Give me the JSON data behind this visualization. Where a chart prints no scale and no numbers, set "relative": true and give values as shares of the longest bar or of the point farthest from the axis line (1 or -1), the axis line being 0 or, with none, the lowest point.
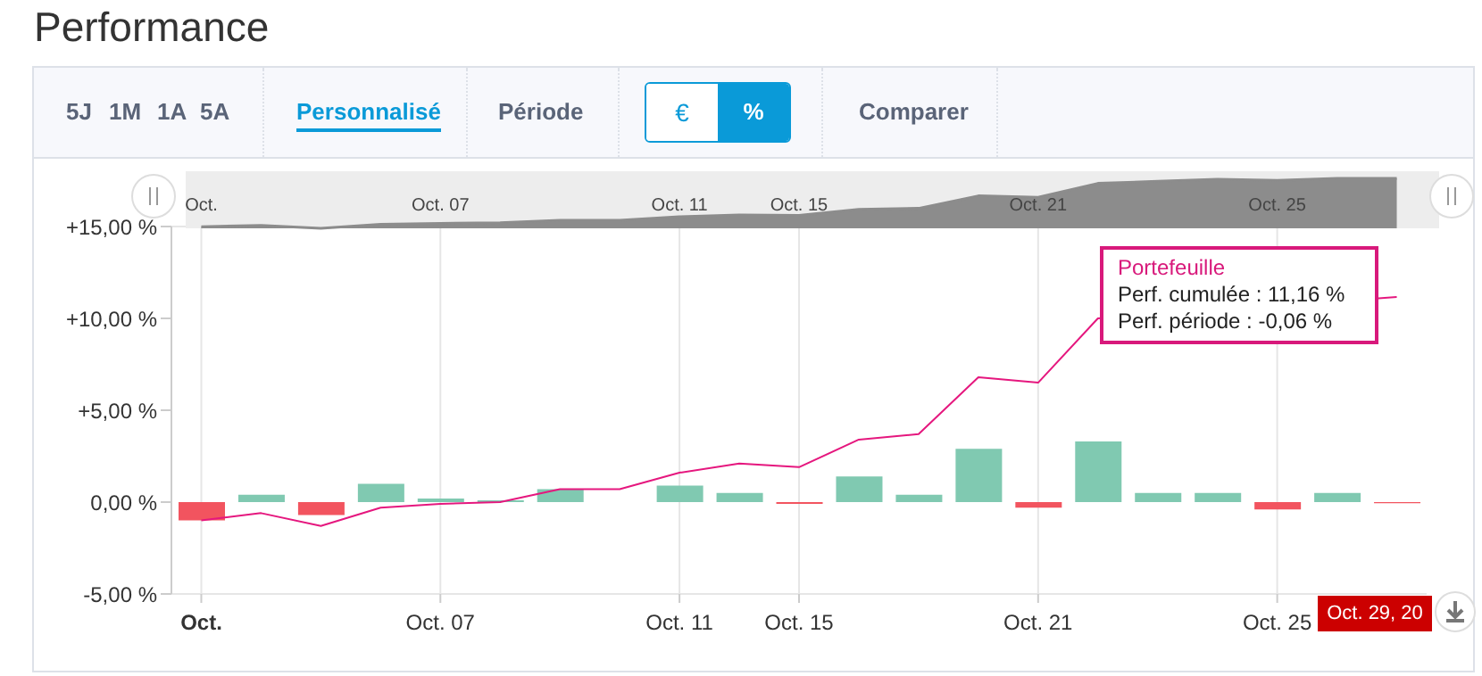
{
  "chart_data": [
    {
      "type": "bar",
      "categories": [
        "Oct.",
        null,
        null,
        null,
        "Oct. 07",
        null,
        null,
        null,
        "Oct. 11",
        null,
        "Oct. 15",
        null,
        null,
        null,
        "Oct. 21",
        null,
        null,
        null,
        "Oct. 25",
        null,
        null
      ],
      "ylim": [
        -5,
        15
      ],
      "yticks": [
        {
          "value": 15,
          "label": "+15,00 %"
        },
        {
          "value": 10,
          "label": "+10,00 %"
        },
        {
          "value": 5,
          "label": "+5,00 %"
        },
        {
          "value": 0,
          "label": "0,00 %"
        },
        {
          "value": -5,
          "label": "-5,00 %"
        }
      ],
      "grid": true,
      "series": [
        {
          "colors": [
            "#f2545f",
            "#80c9b1",
            "#f2545f",
            "#80c9b1",
            "#80c9b1",
            "#80c9b1",
            "#80c9b1",
            "#80c9b1",
            "#80c9b1",
            "#80c9b1",
            "#f2545f",
            "#80c9b1",
            "#80c9b1",
            "#80c9b1",
            "#f2545f",
            "#80c9b1",
            "#80c9b1",
            "#80c9b1",
            "#f2545f",
            "#80c9b1",
            "#f2545f"
          ],
          "values": [
            -1.0,
            0.4,
            -0.7,
            1.0,
            0.2,
            0.1,
            0.7,
            0,
            0.9,
            0.5,
            -0.1,
            1.4,
            0.4,
            2.9,
            -0.3,
            3.3,
            0.5,
            0.5,
            -0.4,
            0.5,
            -0.06
          ]
        },
        {
          "type": "line",
          "color": "#e5177e",
          "values": [
            -1.0,
            -0.6,
            -1.3,
            -0.3,
            -0.1,
            0.0,
            0.7,
            0.7,
            1.6,
            2.1,
            1.9,
            3.4,
            3.7,
            6.8,
            6.5,
            10.0,
            null,
            null,
            null,
            null,
            11.16
          ]
        }
      ],
      "annotations": [
        "Portefeuille",
        "Perf. cumulée : 11,16 %",
        "Perf. période : -0,06 %",
        "Oct. 29, 20",
        "5J",
        "1M",
        "1A",
        "5A",
        "Personnalisé",
        "Période",
        "€",
        "%",
        "Comparer"
      ]
    },
    {
      "type": "area",
      "title": "Performance",
      "relative": true,
      "color": "#8c8c8c",
      "categories": [
        "Oct.",
        null,
        null,
        null,
        "Oct. 07",
        null,
        null,
        null,
        "Oct. 11",
        null,
        "Oct. 15",
        null,
        null,
        null,
        "Oct. 21",
        null,
        null,
        null,
        "Oct. 25",
        null,
        null
      ],
      "values": [
        0.03,
        0.06,
        0,
        0.08,
        0.1,
        0.11,
        0.16,
        0.16,
        0.23,
        0.27,
        0.26,
        0.38,
        0.4,
        0.65,
        0.62,
        0.9,
        0.94,
        0.98,
        0.96,
        1,
        1
      ]
    }
  ]
}
